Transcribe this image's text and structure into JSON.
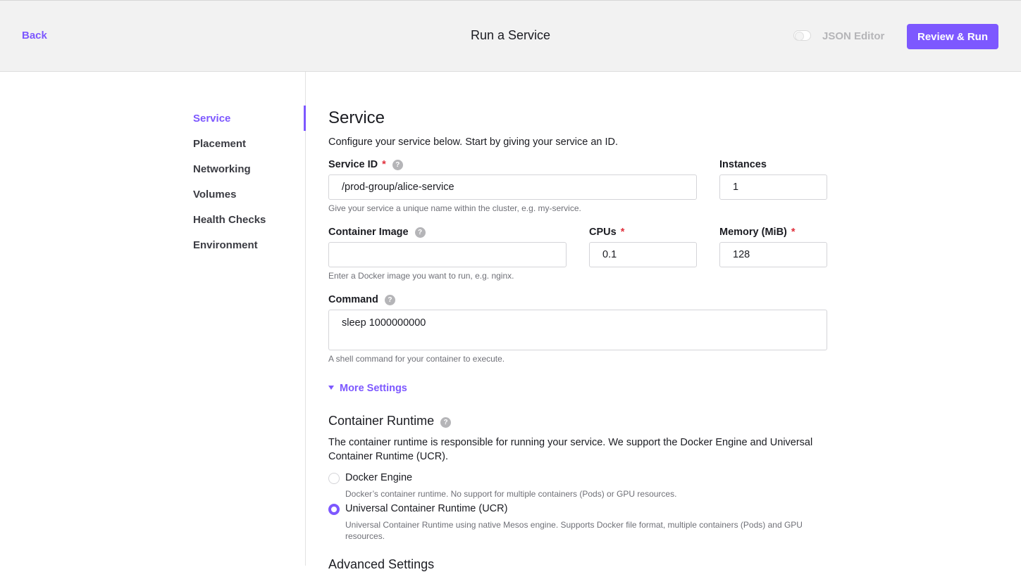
{
  "header": {
    "back_label": "Back",
    "title": "Run a Service",
    "json_editor_label": "JSON Editor",
    "json_editor_enabled": false,
    "review_run_label": "Review & Run"
  },
  "sidebar": {
    "active": "Service",
    "items": [
      {
        "label": "Service"
      },
      {
        "label": "Placement"
      },
      {
        "label": "Networking"
      },
      {
        "label": "Volumes"
      },
      {
        "label": "Health Checks"
      },
      {
        "label": "Environment"
      }
    ]
  },
  "service": {
    "title": "Service",
    "intro": "Configure your service below. Start by giving your service an ID.",
    "service_id": {
      "label": "Service ID",
      "required_mark": "*",
      "value": "/prod-group/alice-service",
      "hint": "Give your service a unique name within the cluster, e.g. my-service."
    },
    "instances": {
      "label": "Instances",
      "value": "1"
    },
    "container_image": {
      "label": "Container Image",
      "value": "",
      "hint": "Enter a Docker image you want to run, e.g. nginx."
    },
    "cpus": {
      "label": "CPUs",
      "required_mark": "*",
      "value": "0.1"
    },
    "memory": {
      "label": "Memory (MiB)",
      "required_mark": "*",
      "value": "128"
    },
    "command": {
      "label": "Command",
      "value": "sleep 1000000000",
      "hint": "A shell command for your container to execute."
    },
    "more_settings_label": "More Settings"
  },
  "container_runtime": {
    "title": "Container Runtime",
    "description": "The container runtime is responsible for running your service. We support the Docker Engine and Universal Container Runtime (UCR).",
    "selected": "Universal Container Runtime (UCR)",
    "options": [
      {
        "label": "Docker Engine",
        "description": "Docker’s container runtime. No support for multiple containers (Pods) or GPU resources."
      },
      {
        "label": "Universal Container Runtime (UCR)",
        "description": "Universal Container Runtime using native Mesos engine. Supports Docker file format, multiple containers (Pods) and GPU resources."
      }
    ]
  },
  "advanced_settings": {
    "title": "Advanced Settings"
  },
  "icons": {
    "help": "?"
  },
  "colors": {
    "accent": "#7d58ff",
    "required": "#e0303c"
  }
}
